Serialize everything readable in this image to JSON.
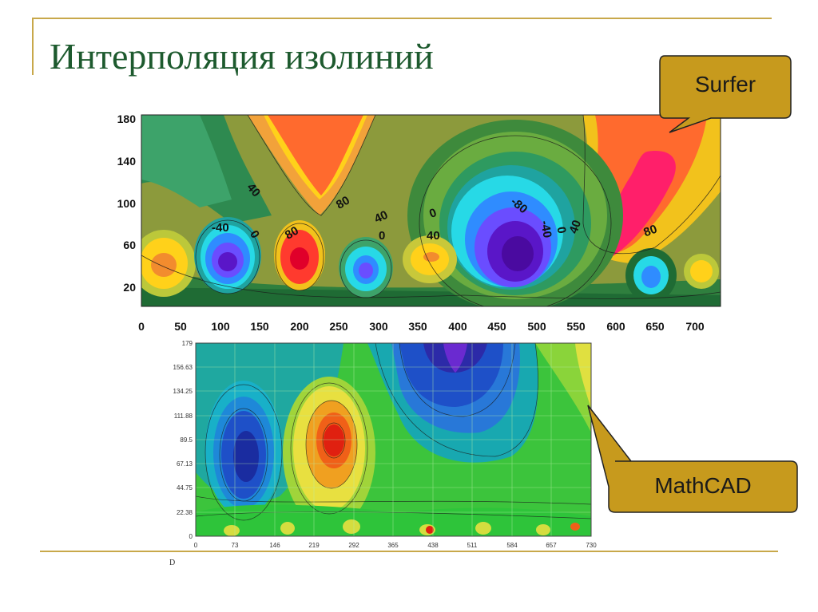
{
  "slide": {
    "title": "Интерполяция изолиний",
    "footnote": "D"
  },
  "callouts": {
    "surfer": "Surfer",
    "mathcad": "MathCAD"
  },
  "surfer_plot": {
    "y_ticks": [
      "180",
      "140",
      "100",
      "60",
      "20"
    ],
    "x_ticks": [
      "0",
      "50",
      "100",
      "150",
      "200",
      "250",
      "300",
      "350",
      "400",
      "450",
      "500",
      "550",
      "600",
      "650",
      "700"
    ],
    "contour_labels": [
      "40",
      "-40",
      "0",
      "80",
      "80",
      "40",
      "0",
      "0",
      "40",
      "-80",
      "-40",
      "0",
      "40",
      "80"
    ]
  },
  "mathcad_plot": {
    "y_ticks": [
      "179",
      "156.63",
      "134.25",
      "111.88",
      "89.5",
      "67.13",
      "44.75",
      "22.38",
      "0"
    ],
    "x_ticks": [
      "0",
      "73",
      "146",
      "219",
      "292",
      "365",
      "438",
      "511",
      "584",
      "657",
      "730"
    ]
  },
  "colors": {
    "accent_rule": "#c8a84a",
    "title_green": "#1d5a2e",
    "callout_fill": "#c79a1d"
  }
}
